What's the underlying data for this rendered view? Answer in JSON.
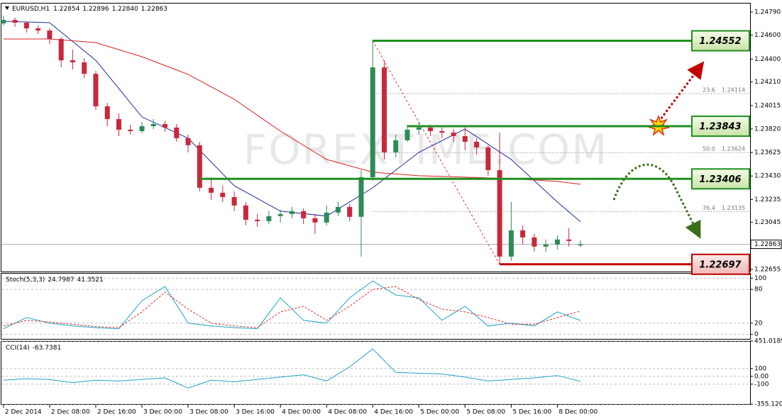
{
  "chart_data": [
    {
      "type": "candlestick",
      "header": {
        "symbol": "EURUSD,H1",
        "ohlc": [
          "1.22854",
          "1.22896",
          "1.22840",
          "1.22863"
        ]
      },
      "watermark": "FOREXTIME.COM",
      "categories": [
        "2 Dec 2014",
        null,
        null,
        null,
        "2 Dec 08:00",
        null,
        null,
        null,
        "2 Dec 16:00",
        null,
        null,
        null,
        "3 Dec 00:00",
        null,
        null,
        null,
        "3 Dec 08:00",
        null,
        null,
        null,
        "3 Dec 16:00",
        null,
        null,
        null,
        "4 Dec 00:00",
        null,
        null,
        null,
        "4 Dec 08:00",
        null,
        null,
        null,
        "4 Dec 16:00",
        null,
        null,
        null,
        "5 Dec 00:00",
        null,
        null,
        null,
        "5 Dec 08:00",
        null,
        null,
        null,
        "5 Dec 16:00",
        null,
        null,
        null,
        "8 Dec 00:00",
        null,
        null
      ],
      "open": [
        1.24696,
        1.24725,
        1.24702,
        1.24655,
        1.24637,
        1.24567,
        1.2439,
        1.24373,
        1.24278,
        1.24008,
        1.23902,
        1.23814,
        1.23802,
        1.23843,
        1.23861,
        1.23832,
        1.23743,
        1.23685,
        1.23332,
        1.23291,
        1.23255,
        1.23185,
        1.23067,
        1.23055,
        1.23097,
        1.23114,
        1.23138,
        1.23079,
        1.23044,
        1.23126,
        1.23173,
        1.23091,
        1.2342,
        1.24331,
        1.23626,
        1.23726,
        1.23814,
        1.23832,
        1.23802,
        1.2379,
        1.23761,
        1.23714,
        1.23667,
        1.23479,
        1.22761,
        1.22979,
        1.2292,
        1.22844,
        1.22861,
        1.22903,
        1.22854
      ],
      "high": [
        1.24761,
        1.24743,
        1.24714,
        1.24678,
        1.24655,
        1.24584,
        1.24478,
        1.24408,
        1.24302,
        1.24037,
        1.23949,
        1.23855,
        1.23879,
        1.23902,
        1.2389,
        1.23861,
        1.23773,
        1.23714,
        1.2342,
        1.23349,
        1.23302,
        1.23214,
        1.23114,
        1.23138,
        1.2315,
        1.23173,
        1.23161,
        1.23114,
        1.23185,
        1.23214,
        1.23197,
        1.23479,
        1.24552,
        1.2439,
        1.23773,
        1.23855,
        1.23879,
        1.23855,
        1.23832,
        1.2382,
        1.23832,
        1.23743,
        1.23685,
        1.2379,
        1.23214,
        1.2302,
        1.2295,
        1.22903,
        1.22938,
        1.22997,
        1.22896
      ],
      "low": [
        1.24678,
        1.24667,
        1.2462,
        1.24608,
        1.24525,
        1.24331,
        1.24314,
        1.24243,
        1.23979,
        1.23843,
        1.23761,
        1.23773,
        1.23785,
        1.2382,
        1.23796,
        1.23714,
        1.23626,
        1.23302,
        1.23232,
        1.23214,
        1.23138,
        1.2302,
        1.23008,
        1.23032,
        1.23044,
        1.23079,
        1.23032,
        1.2295,
        1.2302,
        1.23097,
        1.23055,
        1.22761,
        1.23391,
        1.23567,
        1.23585,
        1.23714,
        1.23773,
        1.23761,
        1.23743,
        1.23714,
        1.23643,
        1.23608,
        1.23432,
        1.22697,
        1.22726,
        1.22861,
        1.22803,
        1.22797,
        1.2282,
        1.22844,
        1.2284
      ],
      "close": [
        1.24725,
        1.24702,
        1.24655,
        1.24637,
        1.24567,
        1.2439,
        1.24373,
        1.24278,
        1.24008,
        1.23902,
        1.23814,
        1.23802,
        1.23843,
        1.23861,
        1.23832,
        1.23743,
        1.23685,
        1.23332,
        1.23291,
        1.23255,
        1.23185,
        1.23067,
        1.23055,
        1.23097,
        1.23114,
        1.23138,
        1.23079,
        1.23044,
        1.23126,
        1.23173,
        1.23091,
        1.2342,
        1.24331,
        1.23626,
        1.23726,
        1.23814,
        1.23832,
        1.23802,
        1.2379,
        1.23761,
        1.23714,
        1.23667,
        1.23479,
        1.22761,
        1.22979,
        1.2292,
        1.22844,
        1.22861,
        1.22903,
        1.22891,
        1.22863
      ],
      "up_color": "#2e8b57",
      "down_color": "#c8283c",
      "series": [
        {
          "color": "#1c2a9c",
          "x": [
            0,
            4,
            8,
            12,
            16,
            20,
            24,
            28,
            32,
            36,
            40,
            44,
            48,
            50
          ],
          "values": [
            1.24714,
            1.24702,
            1.2439,
            1.2392,
            1.23743,
            1.23349,
            1.23138,
            1.23097,
            1.23332,
            1.23626,
            1.2382,
            1.23567,
            1.23214,
            1.2305
          ]
        },
        {
          "color": "#d42020",
          "x": [
            0,
            4,
            8,
            12,
            16,
            20,
            24,
            28,
            32,
            36,
            40,
            44,
            48,
            50
          ],
          "values": [
            1.24567,
            1.24567,
            1.24537,
            1.2442,
            1.24273,
            1.24067,
            1.23802,
            1.23567,
            1.23461,
            1.23432,
            1.2342,
            1.23408,
            1.23385,
            1.23361
          ]
        }
      ],
      "xlim": [
        -0.3,
        64.7
      ],
      "ylim": [
        1.22637,
        1.24861
      ],
      "yticks": [
        {
          "value": 1.2479,
          "label": "1.24790"
        },
        {
          "value": 1.246,
          "label": "1.24600"
        },
        {
          "value": 1.244,
          "label": "1.24400"
        },
        {
          "value": 1.2421,
          "label": "1.24210"
        },
        {
          "value": 1.24015,
          "label": "1.24015"
        },
        {
          "value": 1.2382,
          "label": "1.23820"
        },
        {
          "value": 1.23625,
          "label": "1.23625"
        },
        {
          "value": 1.2343,
          "label": "1.23430"
        },
        {
          "value": 1.23235,
          "label": "1.23235"
        },
        {
          "value": 1.23045,
          "label": "1.23045"
        },
        {
          "value": 1.22655,
          "label": "1.22655"
        }
      ],
      "current_price": 1.22863,
      "levels": [
        {
          "value": 1.24552,
          "color": "#1f8f1f"
        },
        {
          "value": 1.23843,
          "color": "#1f8f1f"
        },
        {
          "value": 1.23406,
          "color": "#1f8f1f"
        },
        {
          "value": 1.22697,
          "color": "#c00000"
        }
      ],
      "fibonacci": [
        {
          "ratio": 23.6,
          "price": 1.24114
        },
        {
          "ratio": {
            "value": 50,
            "label": "50.0"
          },
          "price": 1.23624
        },
        {
          "ratio": 76.4,
          "price": 1.23135
        }
      ],
      "grid": false
    },
    {
      "type": "line",
      "title": "Stoch(5,3,3)",
      "x": [
        0,
        2,
        4,
        6,
        8,
        10,
        12,
        14,
        16,
        18,
        20,
        22,
        24,
        26,
        28,
        30,
        32,
        34,
        36,
        38,
        40,
        42,
        44,
        46,
        48,
        50
      ],
      "series": [
        {
          "color": "#1fa3c9",
          "values": [
            10,
            30,
            20,
            15,
            12,
            10,
            60,
            85,
            20,
            15,
            12,
            10,
            65,
            25,
            20,
            65,
            95,
            70,
            65,
            25,
            50,
            15,
            20,
            15,
            40,
            24.7987
          ]
        },
        {
          "color": "#e0322d",
          "dash": true,
          "values": [
            15,
            25,
            22,
            18,
            14,
            12,
            40,
            75,
            45,
            20,
            15,
            12,
            40,
            50,
            25,
            50,
            80,
            85,
            62,
            45,
            40,
            30,
            18,
            18,
            30,
            41.3521
          ]
        }
      ],
      "xlim": [
        -0.3,
        64.7
      ],
      "ylim": [
        -8,
        108
      ],
      "yticks": [
        100,
        80,
        20,
        0
      ],
      "grid": true
    },
    {
      "type": "line",
      "title": "CCI(14)",
      "x": [
        0,
        2,
        4,
        6,
        8,
        10,
        12,
        14,
        16,
        18,
        20,
        22,
        24,
        26,
        28,
        30,
        32,
        34,
        36,
        38,
        40,
        42,
        44,
        46,
        48,
        50
      ],
      "series": [
        {
          "color": "#1fa3c9",
          "values": [
            -50,
            -30,
            -40,
            -80,
            -50,
            -60,
            -40,
            -20,
            -150,
            -50,
            -70,
            -40,
            -10,
            20,
            -60,
            120,
            350,
            50,
            40,
            30,
            -10,
            -60,
            -40,
            -20,
            10,
            -63.7381
          ]
        }
      ],
      "xlim": [
        -0.3,
        64.7
      ],
      "ylim": [
        -355.1202,
        451.0189
      ],
      "yticks": [
        451.0189,
        100,
        {
          "value": 0,
          "label": "0.00"
        },
        -100,
        -355.1202
      ],
      "grid": true
    }
  ]
}
